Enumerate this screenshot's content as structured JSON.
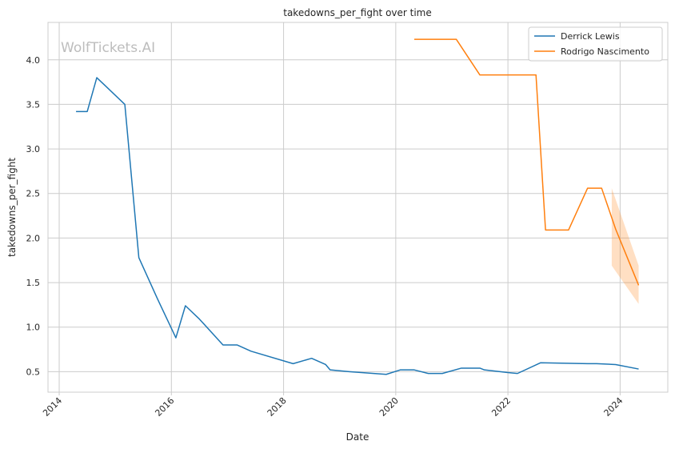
{
  "chart_data": {
    "type": "line",
    "title": "takedowns_per_fight over time",
    "xlabel": "Date",
    "ylabel": "takedowns_per_fight",
    "watermark": "WolfTickets.AI",
    "xlim": [
      2013.8,
      2024.85
    ],
    "ylim": [
      0.27,
      4.42
    ],
    "x_ticks": [
      2014,
      2016,
      2018,
      2020,
      2022,
      2024
    ],
    "x_tick_labels": [
      "2014",
      "2016",
      "2018",
      "2020",
      "2022",
      "2024"
    ],
    "y_ticks": [
      0.5,
      1.0,
      1.5,
      2.0,
      2.5,
      3.0,
      3.5,
      4.0
    ],
    "y_tick_labels": [
      "0.5",
      "1.0",
      "1.5",
      "2.0",
      "2.5",
      "3.0",
      "3.5",
      "4.0"
    ],
    "grid": true,
    "legend_position": "top-right",
    "series": [
      {
        "name": "Derrick Lewis",
        "color": "#1f77b4",
        "points": [
          [
            2014.3,
            3.42
          ],
          [
            2014.5,
            3.42
          ],
          [
            2014.67,
            3.8
          ],
          [
            2015.17,
            3.5
          ],
          [
            2015.42,
            1.78
          ],
          [
            2015.75,
            1.32
          ],
          [
            2016.08,
            0.88
          ],
          [
            2016.25,
            1.24
          ],
          [
            2016.5,
            1.09
          ],
          [
            2016.92,
            0.8
          ],
          [
            2017.17,
            0.8
          ],
          [
            2017.42,
            0.73
          ],
          [
            2018.17,
            0.59
          ],
          [
            2018.5,
            0.65
          ],
          [
            2018.75,
            0.58
          ],
          [
            2018.83,
            0.52
          ],
          [
            2019.17,
            0.5
          ],
          [
            2019.83,
            0.47
          ],
          [
            2020.08,
            0.52
          ],
          [
            2020.33,
            0.52
          ],
          [
            2020.58,
            0.48
          ],
          [
            2020.83,
            0.48
          ],
          [
            2021.17,
            0.54
          ],
          [
            2021.5,
            0.54
          ],
          [
            2021.58,
            0.52
          ],
          [
            2022.0,
            0.49
          ],
          [
            2022.17,
            0.48
          ],
          [
            2022.58,
            0.6
          ],
          [
            2023.42,
            0.59
          ],
          [
            2023.58,
            0.59
          ],
          [
            2023.92,
            0.58
          ],
          [
            2024.33,
            0.53
          ]
        ]
      },
      {
        "name": "Rodrigo Nascimento",
        "color": "#ff7f0e",
        "points": [
          [
            2020.33,
            4.23
          ],
          [
            2021.08,
            4.23
          ],
          [
            2021.5,
            3.83
          ],
          [
            2022.5,
            3.83
          ],
          [
            2022.67,
            2.09
          ],
          [
            2023.08,
            2.09
          ],
          [
            2023.42,
            2.56
          ],
          [
            2023.67,
            2.56
          ],
          [
            2023.92,
            2.1
          ],
          [
            2024.33,
            1.47
          ]
        ],
        "band": {
          "x": [
            2023.85,
            2024.33
          ],
          "lower": [
            1.69,
            1.26
          ],
          "upper": [
            2.56,
            1.69
          ]
        }
      }
    ]
  }
}
